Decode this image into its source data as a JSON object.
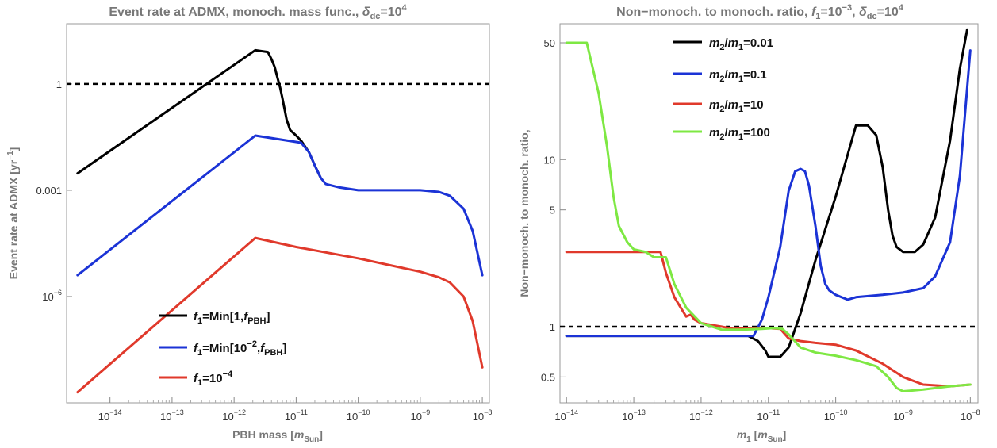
{
  "chart_data": [
    {
      "type": "line",
      "title": "Event rate at ADMX, monoch. mass func., δdc=10^4",
      "title_parts": {
        "main": "Event rate at ADMX, monoch. mass func., ",
        "delta": "δ",
        "sub": "dc",
        "eq": "=10",
        "sup": "4"
      },
      "xlabel": "PBH mass [mSun]",
      "xlabel_parts": {
        "pre": "PBH mass [",
        "m": "m",
        "sub": "Sun",
        "post": "]"
      },
      "ylabel": "Event rate at ADMX [yr^-1]",
      "ylabel_parts": {
        "pre": "Event rate at ADMX [yr",
        "sup": "−1",
        "post": "]"
      },
      "x_scale": "log",
      "y_scale": "log",
      "xlim": [
        2e-15,
        1.3e-08
      ],
      "ylim": [
        1e-09,
        50
      ],
      "x_ticks": [
        {
          "exp": "−14"
        },
        {
          "exp": "−13"
        },
        {
          "exp": "−12"
        },
        {
          "exp": "−11"
        },
        {
          "exp": "−10"
        },
        {
          "exp": "−9"
        },
        {
          "exp": "−8"
        }
      ],
      "y_ticks": [
        "1",
        "0.001",
        "10^-6"
      ],
      "y_tick_parts": [
        {
          "text": "1"
        },
        {
          "text": "0.001"
        },
        {
          "base": "10",
          "exp": "−6"
        }
      ],
      "reference_line": {
        "y": 1,
        "style": "dashed",
        "color": "#000000"
      },
      "legend_position": "bottom-center",
      "series": [
        {
          "name": "f1=Min[1,fPBH]",
          "color": "#000000",
          "x": [
            3e-15,
            2.2e-12,
            3.5e-12,
            4e-12,
            4.5e-12,
            5e-12,
            5.5e-12,
            6e-12,
            7e-12,
            8e-12,
            1e-11,
            1.2e-11,
            1.6e-11,
            2e-11,
            2.5e-11
          ],
          "y": [
            0.003,
            9,
            8,
            5,
            3,
            1.5,
            0.8,
            0.4,
            0.1,
            0.05,
            0.035,
            0.025,
            0.012,
            0.005,
            0.0022
          ]
        },
        {
          "name": "f1=Min[10^-2,fPBH]",
          "color": "#1b33d6",
          "x": [
            3e-15,
            2.2e-12,
            1.2e-11,
            1.6e-11,
            2e-11,
            2.5e-11,
            3e-11,
            5e-11,
            1e-10,
            3e-10,
            1e-09,
            2e-09,
            3e-09,
            5e-09,
            7e-09,
            1e-08
          ],
          "y": [
            4e-06,
            0.035,
            0.022,
            0.012,
            0.005,
            0.0022,
            0.0015,
            0.0012,
            0.001,
            0.001,
            0.001,
            0.0009,
            0.0007,
            0.0003,
            7e-05,
            4e-06
          ]
        },
        {
          "name": "f1=10^-4",
          "color": "#e0392b",
          "x": [
            3e-15,
            2.2e-12,
            1e-11,
            1e-10,
            1e-09,
            2e-09,
            3e-09,
            5e-09,
            7e-09,
            1e-08
          ],
          "y": [
            2e-09,
            4.5e-05,
            2.5e-05,
            1.2e-05,
            5e-06,
            3.5e-06,
            2.5e-06,
            1e-06,
            2e-07,
            1e-08
          ]
        }
      ],
      "legend": [
        {
          "f": "f",
          "sub1": "1",
          "txt1": "=Min[1,",
          "f2": "f",
          "sub2": "PBH",
          "txt2": "]"
        },
        {
          "f": "f",
          "sub1": "1",
          "txt1": "=Min[10",
          "sup": "−2",
          "txt1b": ",",
          "f2": "f",
          "sub2": "PBH",
          "txt2": "]"
        },
        {
          "f": "f",
          "sub1": "1",
          "txt1": "=10",
          "sup": "−4"
        }
      ]
    },
    {
      "type": "line",
      "title": "Non-monoch. to monoch. ratio, f1=10^-3, δdc=10^4",
      "title_parts": {
        "main": "Non−monoch. to monoch. ratio, ",
        "f": "f",
        "fsub": "1",
        "feq": "=10",
        "fsup": "−3",
        "comma": ", ",
        "delta": "δ",
        "sub": "dc",
        "eq": "=10",
        "sup": "4"
      },
      "xlabel": "m1 [mSun]",
      "xlabel_parts": {
        "m1": "m",
        "m1sub": "1",
        "pre": " [",
        "m": "m",
        "sub": "Sun",
        "post": "]"
      },
      "ylabel": "Non−monoch. to monoch. ratio,",
      "x_scale": "log",
      "y_scale": "log",
      "xlim": [
        8e-15,
        1.3e-08
      ],
      "ylim": [
        0.35,
        65
      ],
      "x_ticks": [
        {
          "exp": "−14"
        },
        {
          "exp": "−13"
        },
        {
          "exp": "−12"
        },
        {
          "exp": "−11"
        },
        {
          "exp": "−10"
        },
        {
          "exp": "−9"
        },
        {
          "exp": "−8"
        }
      ],
      "y_ticks": [
        "0.5",
        "1",
        "5",
        "10",
        "50"
      ],
      "reference_line": {
        "y": 1,
        "style": "dashed",
        "color": "#000000"
      },
      "legend_position": "top-center",
      "series": [
        {
          "name": "m2/m1=0.01",
          "color": "#000000",
          "x": [
            1e-14,
            5e-12,
            7e-12,
            9e-12,
            1e-11,
            1.5e-11,
            2e-11,
            3e-11,
            5e-11,
            1e-10,
            2e-10,
            3e-10,
            4e-10,
            5e-10,
            6e-10,
            7e-10,
            8e-10,
            1e-09,
            1.5e-09,
            2e-09,
            3e-09,
            5e-09,
            7e-09,
            9e-09
          ],
          "y": [
            0.88,
            0.88,
            0.82,
            0.72,
            0.66,
            0.66,
            0.75,
            1.2,
            2.5,
            6,
            16,
            16,
            14,
            9,
            5,
            3.5,
            3,
            2.8,
            2.8,
            3.1,
            4.5,
            13,
            35,
            60
          ]
        },
        {
          "name": "m2/m1=0.1",
          "color": "#1b33d6",
          "x": [
            1e-14,
            6e-12,
            8e-12,
            1e-11,
            1.5e-11,
            2e-11,
            2.5e-11,
            3e-11,
            3.5e-11,
            4e-11,
            5e-11,
            6e-11,
            7e-11,
            8e-11,
            1e-10,
            1.5e-10,
            2e-10,
            5e-10,
            1e-09,
            2e-09,
            3e-09,
            5e-09,
            7e-09,
            1e-08
          ],
          "y": [
            0.88,
            0.88,
            1.1,
            1.5,
            3,
            6.5,
            8.5,
            8.8,
            8.5,
            7,
            4,
            2.3,
            1.8,
            1.65,
            1.55,
            1.45,
            1.5,
            1.55,
            1.6,
            1.7,
            2,
            3.2,
            8,
            45
          ]
        },
        {
          "name": "m2/m1=10",
          "color": "#e0392b",
          "x": [
            1e-14,
            2.5e-13,
            3e-13,
            4e-13,
            6e-13,
            7e-13,
            8e-13,
            1e-12,
            2e-12,
            3e-12,
            5e-12,
            1e-11,
            1.5e-11,
            2e-11,
            3e-11,
            5e-11,
            1e-10,
            2e-10,
            5e-10,
            1e-09,
            2e-09,
            5e-09,
            1e-08
          ],
          "y": [
            2.8,
            2.8,
            2.1,
            1.5,
            1.15,
            1.18,
            1.1,
            1.05,
            1.0,
            0.97,
            0.98,
            0.98,
            0.97,
            0.85,
            0.82,
            0.8,
            0.78,
            0.72,
            0.6,
            0.5,
            0.45,
            0.44,
            0.45
          ]
        },
        {
          "name": "m2/m1=100",
          "color": "#7ee843",
          "x": [
            1e-14,
            2e-14,
            3e-14,
            4e-14,
            5e-14,
            6e-14,
            8e-14,
            1e-13,
            1.5e-13,
            2e-13,
            3e-13,
            4e-13,
            6e-13,
            1e-12,
            2e-12,
            4e-12,
            8e-12,
            1.2e-11,
            1.6e-11,
            2e-11,
            3e-11,
            5e-11,
            1e-10,
            2e-10,
            4e-10,
            6e-10,
            8e-10,
            1e-09,
            2e-09,
            5e-09,
            1e-08
          ],
          "y": [
            50,
            50,
            25,
            12,
            6,
            4,
            3.2,
            2.9,
            2.8,
            2.6,
            2.6,
            1.8,
            1.3,
            1.05,
            0.96,
            0.96,
            0.97,
            0.98,
            0.97,
            0.9,
            0.75,
            0.7,
            0.67,
            0.63,
            0.58,
            0.5,
            0.43,
            0.41,
            0.42,
            0.44,
            0.45
          ]
        }
      ],
      "legend": [
        {
          "m2": "m",
          "sub2": "2",
          "slash": "/",
          "m1": "m",
          "sub1": "1",
          "val": "=0.01"
        },
        {
          "m2": "m",
          "sub2": "2",
          "slash": "/",
          "m1": "m",
          "sub1": "1",
          "val": "=0.1"
        },
        {
          "m2": "m",
          "sub2": "2",
          "slash": "/",
          "m1": "m",
          "sub1": "1",
          "val": "=10"
        },
        {
          "m2": "m",
          "sub2": "2",
          "slash": "/",
          "m1": "m",
          "sub1": "1",
          "val": "=100"
        }
      ]
    }
  ]
}
